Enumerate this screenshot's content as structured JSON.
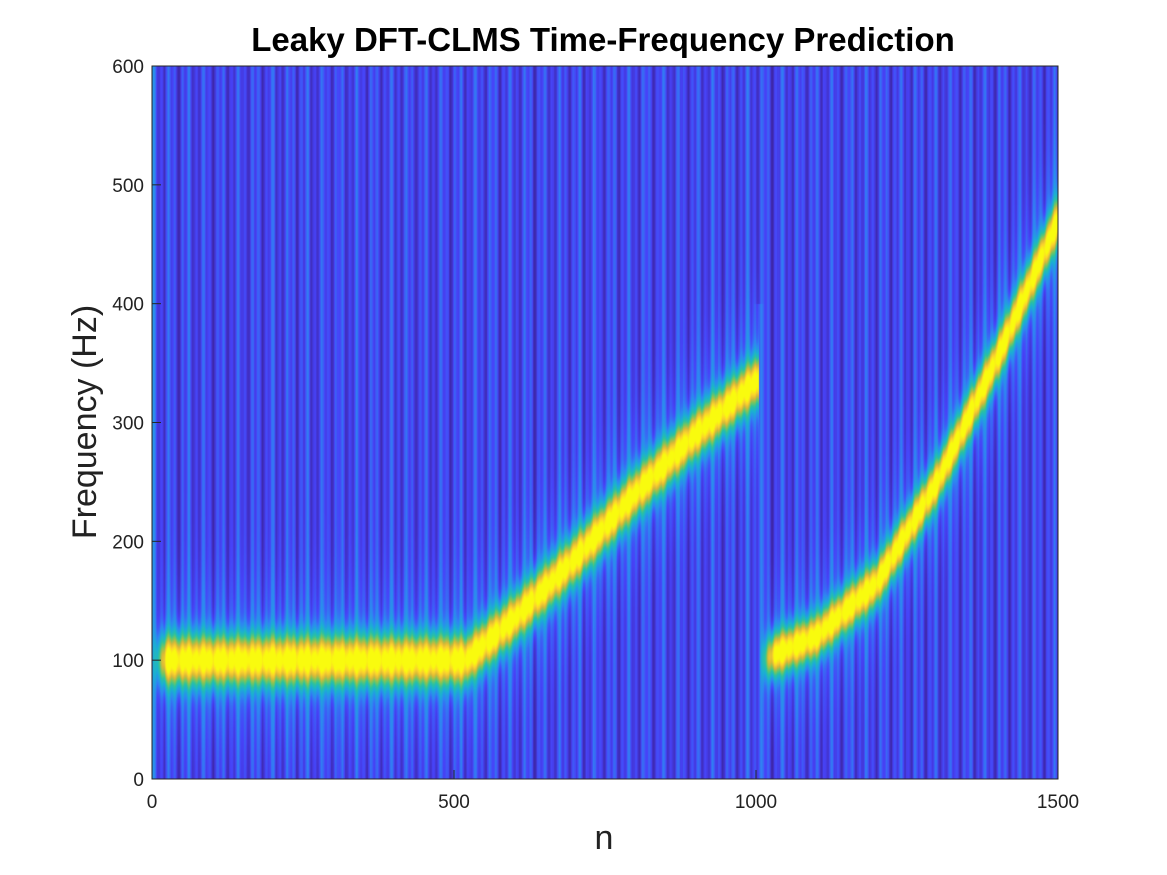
{
  "chart_data": {
    "type": "heatmap",
    "title": "Leaky DFT-CLMS Time-Frequency Prediction",
    "xlabel": "n",
    "ylabel": "Frequency (Hz)",
    "xlim": [
      0,
      1500
    ],
    "ylim": [
      0,
      600
    ],
    "xticks": [
      0,
      500,
      1000,
      1500
    ],
    "yticks": [
      0,
      100,
      200,
      300,
      400,
      500,
      600
    ],
    "grid": false,
    "colormap": "parula",
    "colormap_stops": [
      "#3e26a8",
      "#4743f8",
      "#2e86f2",
      "#1bafd4",
      "#2ac2a1",
      "#7cc55b",
      "#d8b838",
      "#fbd22d",
      "#f9fb0e"
    ],
    "background_color": "#3e30d0",
    "ridge": {
      "description_points": [
        {
          "n": 0,
          "f": 100
        },
        {
          "n": 520,
          "f": 100
        },
        {
          "n": 600,
          "f": 135
        },
        {
          "n": 700,
          "f": 185
        },
        {
          "n": 800,
          "f": 240
        },
        {
          "n": 900,
          "f": 290
        },
        {
          "n": 1000,
          "f": 335
        },
        {
          "n": 1010,
          "f": 100
        },
        {
          "n": 1100,
          "f": 120
        },
        {
          "n": 1200,
          "f": 165
        },
        {
          "n": 1300,
          "f": 250
        },
        {
          "n": 1400,
          "f": 355
        },
        {
          "n": 1500,
          "f": 470
        }
      ]
    }
  }
}
